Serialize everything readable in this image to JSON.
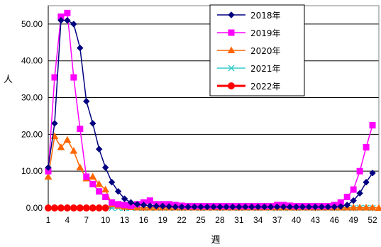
{
  "chart_data": {
    "type": "line",
    "title": "",
    "xlabel": "週",
    "ylabel": "人",
    "xlim": [
      1,
      53
    ],
    "ylim": [
      0,
      55
    ],
    "y_ticks": [
      "0.00",
      "10.00",
      "20.00",
      "30.00",
      "40.00",
      "50.00"
    ],
    "x_tick_labels": [
      "1",
      "4",
      "7",
      "10",
      "13",
      "16",
      "19",
      "22",
      "25",
      "28",
      "31",
      "34",
      "37",
      "40",
      "43",
      "46",
      "49",
      "52"
    ],
    "grid": true,
    "legend_position": "top-right",
    "series": [
      {
        "name": "2018年",
        "color": "#000080",
        "marker": "diamond",
        "x": [
          1,
          2,
          3,
          4,
          5,
          6,
          7,
          8,
          9,
          10,
          11,
          12,
          13,
          14,
          15,
          16,
          17,
          18,
          19,
          20,
          21,
          22,
          23,
          24,
          25,
          26,
          27,
          28,
          29,
          30,
          31,
          32,
          33,
          34,
          35,
          36,
          37,
          38,
          39,
          40,
          41,
          42,
          43,
          44,
          45,
          46,
          47,
          48,
          49,
          50,
          51,
          52
        ],
        "values": [
          11,
          23,
          51,
          51,
          50,
          43.5,
          29,
          23,
          16,
          11,
          7,
          4.5,
          2.5,
          1.5,
          1,
          0.8,
          0.6,
          0.5,
          0.5,
          0.4,
          0.3,
          0.3,
          0.3,
          0.3,
          0.3,
          0.3,
          0.3,
          0.3,
          0.3,
          0.3,
          0.3,
          0.3,
          0.3,
          0.3,
          0.3,
          0.3,
          0.3,
          0.3,
          0.3,
          0.3,
          0.3,
          0.3,
          0.3,
          0.3,
          0.3,
          0.3,
          0.4,
          0.8,
          2,
          4,
          7,
          9.5
        ]
      },
      {
        "name": "2019年",
        "color": "#ff00ff",
        "marker": "square",
        "x": [
          1,
          2,
          3,
          4,
          5,
          6,
          7,
          8,
          9,
          10,
          11,
          12,
          13,
          14,
          15,
          16,
          17,
          18,
          19,
          20,
          21,
          22,
          23,
          24,
          25,
          26,
          27,
          28,
          29,
          30,
          31,
          32,
          33,
          34,
          35,
          36,
          37,
          38,
          39,
          40,
          41,
          42,
          43,
          44,
          45,
          46,
          47,
          48,
          49,
          50,
          51,
          52
        ],
        "values": [
          10,
          35.5,
          52,
          53,
          35.5,
          21.5,
          8.5,
          6.5,
          4.5,
          3,
          1.5,
          1,
          0.8,
          0.6,
          1,
          1.5,
          2,
          1,
          1,
          1,
          0.8,
          0.6,
          0.5,
          0.5,
          0.5,
          0.5,
          0.5,
          0.5,
          0.5,
          0.5,
          0.5,
          0.5,
          0.5,
          0.5,
          0.5,
          0.5,
          0.8,
          0.8,
          0.6,
          0.5,
          0.5,
          0.5,
          0.5,
          0.5,
          0.5,
          0.8,
          1.5,
          3,
          5,
          10,
          16.5,
          22.5
        ]
      },
      {
        "name": "2020年",
        "color": "#ff6600",
        "marker": "triangle",
        "x": [
          1,
          2,
          3,
          4,
          5,
          6,
          7,
          8,
          9,
          10,
          11,
          12,
          13,
          14,
          15,
          16,
          17,
          18,
          19,
          20,
          21,
          22,
          23,
          24,
          25,
          26,
          27,
          28,
          29,
          30,
          31,
          32,
          33,
          34,
          35,
          36,
          37,
          38,
          39,
          40,
          41,
          42,
          43,
          44,
          45,
          46,
          47,
          48,
          49,
          50,
          51,
          52,
          53
        ],
        "values": [
          8.5,
          19.5,
          16.5,
          18.5,
          15.5,
          11,
          8,
          8.5,
          6.5,
          5,
          1,
          0.6,
          0.3,
          0.2,
          0.1,
          0.1,
          0.1,
          0.1,
          0.1,
          0.1,
          0.1,
          0.1,
          0.1,
          0.1,
          0.1,
          0.1,
          0.1,
          0.1,
          0.1,
          0.1,
          0.1,
          0.1,
          0.1,
          0.1,
          0.1,
          0.1,
          0.1,
          0.1,
          0.1,
          0.1,
          0.1,
          0.1,
          0.1,
          0.1,
          0.1,
          0.1,
          0.1,
          0.1,
          0.1,
          0.1,
          0.1,
          0.1,
          0
        ]
      },
      {
        "name": "2021年",
        "color": "#33cccc",
        "marker": "x",
        "x": [
          11,
          12,
          13,
          14,
          15,
          16,
          17,
          18,
          19,
          20,
          21,
          22,
          23,
          24,
          25,
          26,
          27,
          28,
          29,
          30,
          31,
          32,
          33,
          34,
          35,
          36,
          37,
          38,
          39,
          40,
          41,
          42,
          43,
          44,
          45,
          46,
          47,
          48,
          49,
          50,
          51,
          52
        ],
        "values": [
          0,
          0,
          0,
          0,
          0,
          0,
          0,
          0,
          0,
          0,
          0,
          0,
          0,
          0,
          0,
          0,
          0,
          0,
          0,
          0,
          0,
          0,
          0,
          0,
          0,
          0,
          0,
          0,
          0,
          0,
          0,
          0,
          0,
          0,
          0,
          0,
          0,
          0,
          0,
          0,
          0,
          0
        ]
      },
      {
        "name": "2022年",
        "color": "#ff0000",
        "marker": "circle",
        "x": [
          1,
          2,
          3,
          4,
          5,
          6,
          7,
          8,
          9,
          10
        ],
        "values": [
          0,
          0,
          0,
          0,
          0,
          0,
          0,
          0,
          0,
          0
        ]
      }
    ]
  }
}
